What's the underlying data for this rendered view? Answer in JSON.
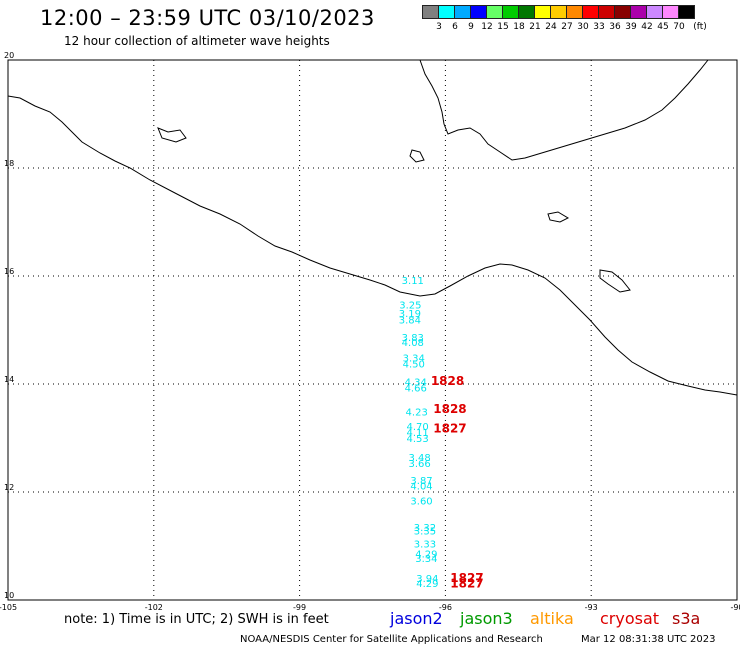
{
  "title": "12:00 – 23:59 UTC 03/10/2023",
  "subtitle": "12 hour collection of altimeter wave heights",
  "colorbar": {
    "unit": "(ft)",
    "levels": [
      "3",
      "6",
      "9",
      "12",
      "15",
      "18",
      "21",
      "24",
      "27",
      "30",
      "33",
      "36",
      "39",
      "42",
      "45",
      "70"
    ],
    "colors": [
      "#808080",
      "#00ffff",
      "#00aaff",
      "#0000ff",
      "#66ff66",
      "#00cc00",
      "#007700",
      "#ffff00",
      "#ffcc00",
      "#ff8800",
      "#ff0000",
      "#cc0000",
      "#880000",
      "#aa00aa",
      "#cc88ff",
      "#ff88ff",
      "#000000"
    ]
  },
  "map": {
    "lat_ticks": [
      "20",
      "18",
      "16",
      "14",
      "12",
      "10"
    ],
    "lon_ticks": [
      "-105",
      "-102",
      "-99",
      "-96",
      "-93",
      "-90"
    ],
    "swh_readings": [
      {
        "lat": 15.85,
        "lon": -96.9,
        "ft": "3.11"
      },
      {
        "lat": 15.4,
        "lon": -96.95,
        "ft": "3.25"
      },
      {
        "lat": 15.24,
        "lon": -96.96,
        "ft": "3.19"
      },
      {
        "lat": 15.12,
        "lon": -96.96,
        "ft": "3.84"
      },
      {
        "lat": 14.8,
        "lon": -96.9,
        "ft": "3.83"
      },
      {
        "lat": 14.7,
        "lon": -96.9,
        "ft": "4.08"
      },
      {
        "lat": 14.42,
        "lon": -96.88,
        "ft": "3.34"
      },
      {
        "lat": 14.31,
        "lon": -96.88,
        "ft": "4.50"
      },
      {
        "lat": 13.97,
        "lon": -96.84,
        "ft": "4.34"
      },
      {
        "lat": 13.86,
        "lon": -96.84,
        "ft": "4.66"
      },
      {
        "lat": 13.42,
        "lon": -96.82,
        "ft": "4.23"
      },
      {
        "lat": 13.15,
        "lon": -96.8,
        "ft": "4.70"
      },
      {
        "lat": 13.04,
        "lon": -96.8,
        "ft": "4.11"
      },
      {
        "lat": 12.93,
        "lon": -96.8,
        "ft": "4.53"
      },
      {
        "lat": 12.57,
        "lon": -96.76,
        "ft": "3.48"
      },
      {
        "lat": 12.46,
        "lon": -96.76,
        "ft": "3.66"
      },
      {
        "lat": 12.15,
        "lon": -96.72,
        "ft": "3.87"
      },
      {
        "lat": 12.05,
        "lon": -96.72,
        "ft": "4.04"
      },
      {
        "lat": 11.77,
        "lon": -96.72,
        "ft": "3.60"
      },
      {
        "lat": 11.28,
        "lon": -96.65,
        "ft": "3.32"
      },
      {
        "lat": 11.21,
        "lon": -96.65,
        "ft": "3.35"
      },
      {
        "lat": 10.97,
        "lon": -96.65,
        "ft": "3.33"
      },
      {
        "lat": 10.79,
        "lon": -96.62,
        "ft": "4.29"
      },
      {
        "lat": 10.7,
        "lon": -96.62,
        "ft": "3.34"
      },
      {
        "lat": 10.33,
        "lon": -96.6,
        "ft": "3.94"
      },
      {
        "lat": 10.24,
        "lon": -96.6,
        "ft": "4.29"
      }
    ],
    "orbit_labels": [
      {
        "lat": 13.98,
        "lon": -96.3,
        "text": "1828"
      },
      {
        "lat": 13.46,
        "lon": -96.25,
        "text": "1828"
      },
      {
        "lat": 13.1,
        "lon": -96.25,
        "text": "1827"
      },
      {
        "lat": 10.33,
        "lon": -95.9,
        "text": "1827"
      },
      {
        "lat": 10.23,
        "lon": -95.9,
        "text": "1827"
      }
    ]
  },
  "note": "note: 1) Time is in UTC; 2) SWH is in feet",
  "satellites": [
    {
      "name": "jason2",
      "color": "#0000dd"
    },
    {
      "name": "jason3",
      "color": "#009900"
    },
    {
      "name": "altika",
      "color": "#ff9900"
    },
    {
      "name": "cryosat",
      "color": "#dd0000"
    },
    {
      "name": "s3a",
      "color": "#aa0000"
    }
  ],
  "credit": "NOAA/NESDIS Center for Satellite Applications and Research",
  "timestamp": "Mar 12 08:31:38 UTC 2023"
}
